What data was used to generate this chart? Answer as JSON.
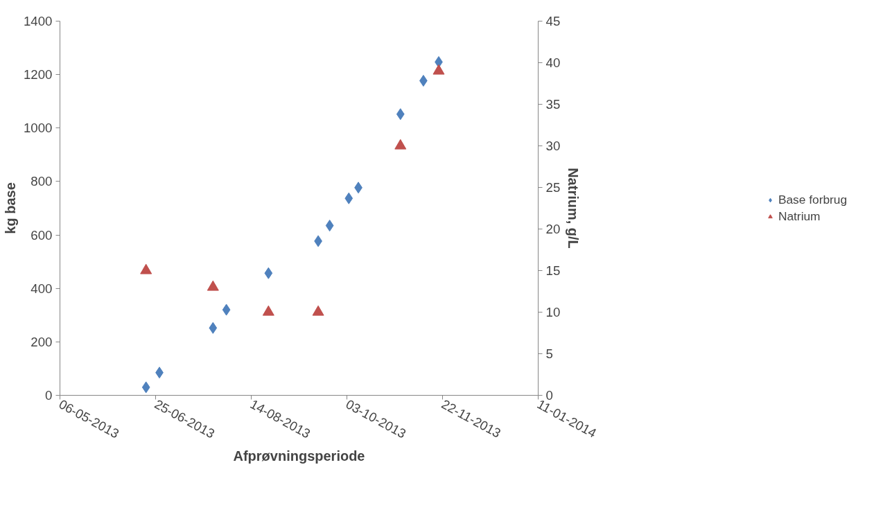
{
  "chart_data": {
    "type": "scatter",
    "xlabel": "Afprøvningsperiode",
    "ylabel": "kg base",
    "y2label": "Natrium, g/L",
    "xlim": [
      "2013-05-06",
      "2014-01-11"
    ],
    "xticks": [
      {
        "value": "2013-05-06",
        "label": "06-05-2013"
      },
      {
        "value": "2013-06-25",
        "label": "25-06-2013"
      },
      {
        "value": "2013-08-14",
        "label": "14-08-2013"
      },
      {
        "value": "2013-10-03",
        "label": "03-10-2013"
      },
      {
        "value": "2013-11-22",
        "label": "22-11-2013"
      },
      {
        "value": "2014-01-11",
        "label": "11-01-2014"
      }
    ],
    "ylim": [
      0,
      1400
    ],
    "yticks": [
      0,
      200,
      400,
      600,
      800,
      1000,
      1200,
      1400
    ],
    "y2lim": [
      0,
      45
    ],
    "y2ticks": [
      0,
      5,
      10,
      15,
      20,
      25,
      30,
      35,
      40,
      45
    ],
    "grid": false,
    "legend": "right",
    "series": [
      {
        "name": "Base forbrug",
        "color": "#4f81bd",
        "marker": "diamond",
        "x": [
          "2013-06-20",
          "2013-06-27",
          "2013-07-25",
          "2013-08-01",
          "2013-08-23",
          "2013-09-18",
          "2013-09-24",
          "2013-10-04",
          "2013-10-09",
          "2013-10-31",
          "2013-11-12",
          "2013-11-20"
        ],
        "values": [
          30,
          85,
          252,
          320,
          457,
          577,
          635,
          737,
          777,
          1052,
          1177,
          1247
        ]
      },
      {
        "name": "Natrium",
        "color": "#c0504d",
        "marker": "triangle",
        "axis": "y2",
        "x": [
          "2013-06-20",
          "2013-07-25",
          "2013-08-23",
          "2013-09-18",
          "2013-10-31",
          "2013-11-20"
        ],
        "values": [
          15,
          13,
          10,
          10,
          30,
          39
        ]
      }
    ]
  }
}
